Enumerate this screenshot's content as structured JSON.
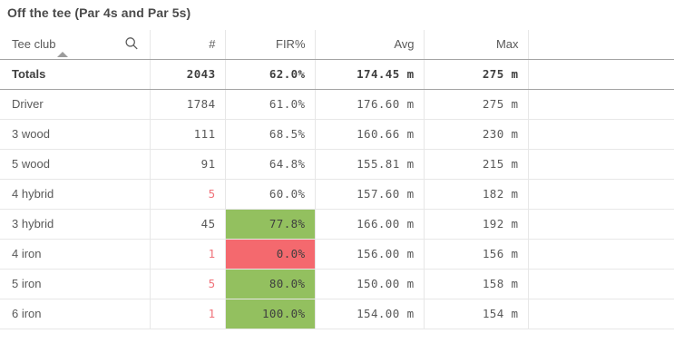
{
  "title": "Off the tee (Par 4s and Par 5s)",
  "colors": {
    "green_bg": "#93c05f",
    "red_bg": "#f4696e",
    "red_text": "#f0727a",
    "cell_text_on_color": "#3f3f3f"
  },
  "table": {
    "columns": [
      {
        "key": "club",
        "label": "Tee club",
        "align": "left",
        "numeric": false
      },
      {
        "key": "count",
        "label": "#",
        "align": "right",
        "numeric": true
      },
      {
        "key": "fir",
        "label": "FIR%",
        "align": "right",
        "numeric": true
      },
      {
        "key": "avg",
        "label": "Avg",
        "align": "right",
        "numeric": true
      },
      {
        "key": "max",
        "label": "Max",
        "align": "right",
        "numeric": true
      },
      {
        "key": "spacer",
        "label": "",
        "align": "left",
        "numeric": false
      }
    ],
    "sort": {
      "column": "Tee club",
      "direction": "ascending"
    },
    "totals": {
      "club": "Totals",
      "count": "2043",
      "fir": "62.0%",
      "avg": "174.45 m",
      "max": "275 m"
    },
    "rows": [
      {
        "club": "Driver",
        "count": "1784",
        "count_red": false,
        "fir": "61.0%",
        "fir_bg": null,
        "avg": "176.60 m",
        "max": "275 m"
      },
      {
        "club": "3 wood",
        "count": "111",
        "count_red": false,
        "fir": "68.5%",
        "fir_bg": null,
        "avg": "160.66 m",
        "max": "230 m"
      },
      {
        "club": "5 wood",
        "count": "91",
        "count_red": false,
        "fir": "64.8%",
        "fir_bg": null,
        "avg": "155.81 m",
        "max": "215 m"
      },
      {
        "club": "4 hybrid",
        "count": "5",
        "count_red": true,
        "fir": "60.0%",
        "fir_bg": null,
        "avg": "157.60 m",
        "max": "182 m"
      },
      {
        "club": "3 hybrid",
        "count": "45",
        "count_red": false,
        "fir": "77.8%",
        "fir_bg": "green",
        "avg": "166.00 m",
        "max": "192 m"
      },
      {
        "club": "4 iron",
        "count": "1",
        "count_red": true,
        "fir": "0.0%",
        "fir_bg": "red",
        "avg": "156.00 m",
        "max": "156 m"
      },
      {
        "club": "5 iron",
        "count": "5",
        "count_red": true,
        "fir": "80.0%",
        "fir_bg": "green",
        "avg": "150.00 m",
        "max": "158 m"
      },
      {
        "club": "6 iron",
        "count": "1",
        "count_red": true,
        "fir": "100.0%",
        "fir_bg": "green",
        "avg": "154.00 m",
        "max": "154 m"
      }
    ]
  }
}
